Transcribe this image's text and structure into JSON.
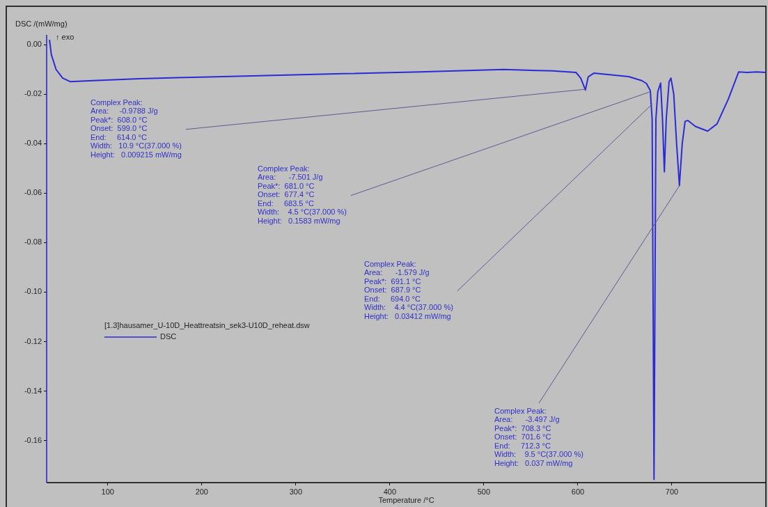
{
  "chart_data": {
    "type": "line",
    "ylabel": "DSC /(mW/mg)",
    "xlabel": "Temperature /°C",
    "legend_title": "[1.3]hausamer_U-10D_Heattreatsin_sek3-U10D_reheat.dsw",
    "legend": "left",
    "grid": false,
    "marker": "none",
    "line_style": "solid",
    "xlim": [
      35,
      800
    ],
    "xticks": [
      100,
      200,
      300,
      400,
      500,
      600,
      700
    ],
    "ylim": [
      -0.177,
      0.004
    ],
    "yticks": [
      {
        "value": 0,
        "label": "0.00"
      },
      {
        "value": -0.02,
        "label": "-0.02"
      },
      {
        "value": -0.04,
        "label": "-0.04"
      },
      {
        "value": -0.06,
        "label": "-0.06"
      },
      {
        "value": -0.08,
        "label": "-0.08"
      },
      {
        "value": -0.1,
        "label": "-0.10"
      },
      {
        "value": -0.12,
        "label": "-0.12"
      },
      {
        "value": -0.14,
        "label": "-0.14"
      },
      {
        "value": -0.16,
        "label": "-0.16"
      }
    ],
    "series": [
      {
        "name": "DSC",
        "color": "#2b2bd6",
        "x": [
          38,
          40,
          45,
          52,
          60,
          80,
          134,
          200,
          283,
          350,
          432,
          521,
          573,
          598,
          603,
          608,
          611,
          617,
          654,
          668,
          673,
          677,
          679,
          681,
          683,
          685,
          688,
          690,
          692,
          694,
          697,
          699,
          702,
          705,
          708,
          711,
          714,
          717,
          725,
          738,
          748,
          760,
          771,
          780,
          790,
          800
        ],
        "values": [
          0.002,
          -0.004,
          -0.01,
          -0.0135,
          -0.0149,
          -0.0146,
          -0.0137,
          -0.0131,
          -0.0123,
          -0.0117,
          -0.011,
          -0.01,
          -0.0106,
          -0.0112,
          -0.0135,
          -0.0183,
          -0.013,
          -0.0115,
          -0.0129,
          -0.0145,
          -0.0157,
          -0.0185,
          -0.03,
          -0.1757,
          -0.03,
          -0.019,
          -0.0155,
          -0.03,
          -0.0514,
          -0.03,
          -0.015,
          -0.0135,
          -0.02,
          -0.04,
          -0.0569,
          -0.04,
          -0.031,
          -0.0306,
          -0.033,
          -0.0349,
          -0.032,
          -0.022,
          -0.011,
          -0.0112,
          -0.011,
          -0.0112
        ]
      }
    ],
    "annotations": [
      "↑ exo",
      {
        "text": "Complex Peak:\nArea:     -0.9788 J/g\nPeak*:  608.0 °C\nOnset:  599.0 °C\nEnd:     614.0 °C\nWidth:   10.9 °C(37.000 %)\nHeight:   0.009215 mW/mg",
        "x": 608,
        "y": -0.018
      },
      {
        "text": "Complex Peak:\nArea:      -7.501 J/g\nPeak*:  681.0 °C\nOnset:  677.4 °C\nEnd:     683.5 °C\nWidth:    4.5 °C(37.000 %)\nHeight:   0.1583 mW/mg",
        "x": 677,
        "y": -0.019
      },
      {
        "text": "Complex Peak:\nArea:      -1.579 J/g\nPeak*:  691.1 °C\nOnset:  687.9 °C\nEnd:     694.0 °C\nWidth:    4.4 °C(37.000 %)\nHeight:   0.03412 mW/mg",
        "x": 679,
        "y": -0.024
      },
      {
        "text": "Complex Peak:\nArea:      -3.497 J/g\nPeak*:  708.3 °C\nOnset:  701.6 °C\nEnd:     712.3 °C\nWidth:    9.5 °C(37.000 %)\nHeight:   0.037 mW/mg",
        "x": 708,
        "y": -0.057
      }
    ]
  }
}
